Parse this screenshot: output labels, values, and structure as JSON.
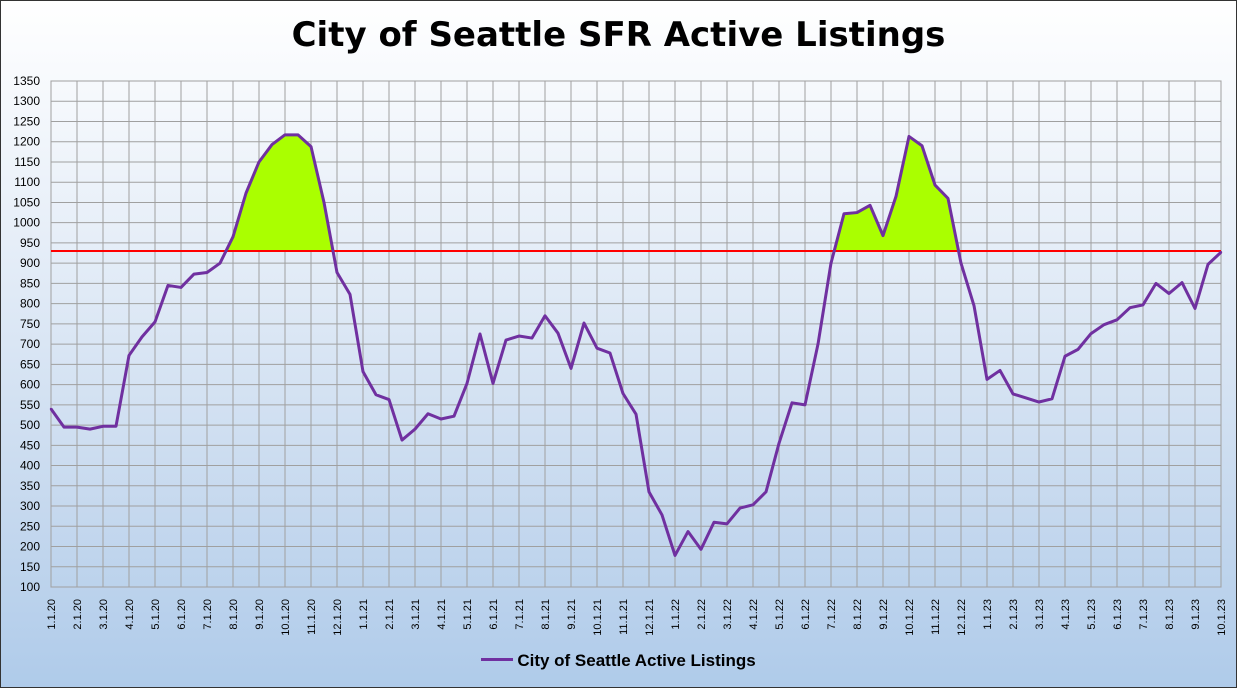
{
  "chart_data": {
    "type": "line",
    "title": "City of Seattle SFR Active Listings",
    "xlabel": "",
    "ylabel": "",
    "ylim": [
      100,
      1350
    ],
    "ytick_step": 50,
    "threshold": 930,
    "threshold_color": "#ff0000",
    "highlight_color": "#aaff00",
    "grid": true,
    "legend_position": "bottom",
    "categories": [
      "1.1.20",
      "",
      "2.1.20",
      "",
      "3.1.20",
      "",
      "4.1.20",
      "",
      "5.1.20",
      "",
      "6.1.20",
      "",
      "7.1.20",
      "",
      "8.1.20",
      "",
      "9.1.20",
      "",
      "10.1.20",
      "",
      "11.1.20",
      "",
      "12.1.20",
      "",
      "1.1.21",
      "",
      "2.1.21",
      "",
      "3.1.21",
      "",
      "4.1.21",
      "",
      "5.1.21",
      "",
      "6.1.21",
      "",
      "7.1.21",
      "",
      "8.1.21",
      "",
      "9.1.21",
      "",
      "10.1.21",
      "",
      "11.1.21",
      "",
      "12.1.21",
      "",
      "1.1.22",
      "",
      "2.1.22",
      "",
      "3.1.22",
      "",
      "4.1.22",
      "",
      "5.1.22",
      "",
      "6.1.22",
      "",
      "7.1.22",
      "",
      "8.1.22",
      "",
      "9.1.22",
      "",
      "10.1.22",
      "",
      "11.1.22",
      "",
      "12.1.22",
      "",
      "1.1.23",
      "",
      "2.1.23",
      "",
      "3.1.23",
      "",
      "4.1.23",
      "",
      "5.1.23",
      "",
      "6.1.23",
      "",
      "7.1.23",
      "",
      "8.1.23",
      "",
      "9.1.23",
      "",
      "10.1.23"
    ],
    "series": [
      {
        "name": "City of Seattle Active Listings",
        "color": "#7030a0",
        "values": [
          540,
          495,
          495,
          490,
          497,
          497,
          672,
          718,
          755,
          845,
          840,
          873,
          877,
          900,
          965,
          1073,
          1150,
          1193,
          1217,
          1217,
          1188,
          1050,
          877,
          823,
          632,
          575,
          563,
          463,
          490,
          528,
          515,
          522,
          603,
          725,
          603,
          710,
          720,
          715,
          770,
          727,
          640,
          752,
          690,
          678,
          578,
          527,
          335,
          278,
          178,
          237,
          193,
          260,
          256,
          295,
          303,
          335,
          455,
          555,
          550,
          700,
          900,
          1022,
          1025,
          1043,
          968,
          1065,
          1213,
          1190,
          1093,
          1060,
          900,
          795,
          613,
          635,
          577,
          567,
          557,
          565,
          670,
          687,
          726,
          748,
          760,
          790,
          797,
          850,
          825,
          852,
          788,
          897,
          927
        ]
      }
    ]
  }
}
